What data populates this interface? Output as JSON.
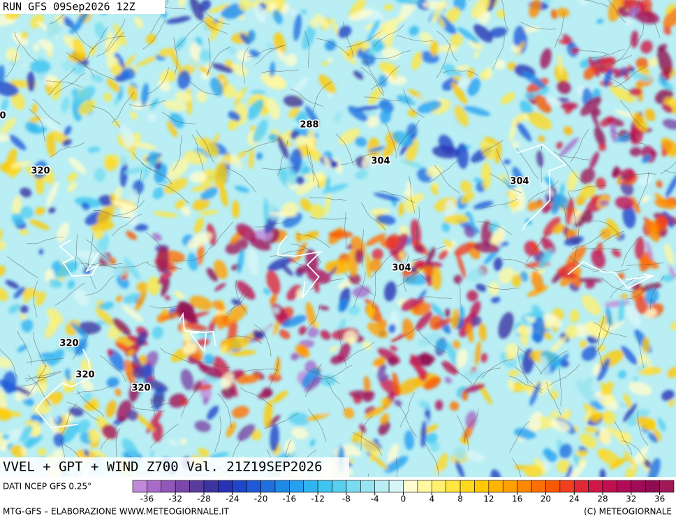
{
  "header": {
    "run": "RUN GFS 09Sep2026 12Z"
  },
  "map": {
    "contour_labels": [
      "288",
      "304",
      "304",
      "304",
      "320",
      "320",
      "320",
      "320",
      "0"
    ],
    "title": "VVEL + GPT + WIND Z700 Val. 21Z19SEP2026"
  },
  "legend": {
    "source": "DATI NCEP GFS 0.25°",
    "range": [
      -38,
      38
    ],
    "ticks": [
      -36,
      -32,
      -28,
      -24,
      -20,
      -16,
      -12,
      -8,
      -4,
      0,
      4,
      8,
      12,
      16,
      20,
      24,
      28,
      32,
      36
    ],
    "colors": [
      "#c08ad8",
      "#a86cc8",
      "#9058b8",
      "#7a48a8",
      "#5a3c9c",
      "#3c34a0",
      "#2832b4",
      "#1e46c8",
      "#1e5ad8",
      "#2070e0",
      "#1e8ae8",
      "#28a0f0",
      "#30b4f0",
      "#40c4f0",
      "#58d0f0",
      "#78dcf0",
      "#98e4f0",
      "#b8eef4",
      "#d8f6f8",
      "#fffcd0",
      "#fff8a0",
      "#fff070",
      "#ffe640",
      "#ffd820",
      "#ffc800",
      "#ffb400",
      "#ffa000",
      "#ff8800",
      "#ff7000",
      "#f85800",
      "#f04020",
      "#e02838",
      "#d01848",
      "#c01050",
      "#b00c58",
      "#a00c58",
      "#900c50",
      "#a01858"
    ]
  },
  "footer": {
    "credit": "MTG-GFS – ELABORAZIONE WWW.METEOGIORNALE.IT",
    "copyright": "(C) METEOGIORNALE"
  }
}
